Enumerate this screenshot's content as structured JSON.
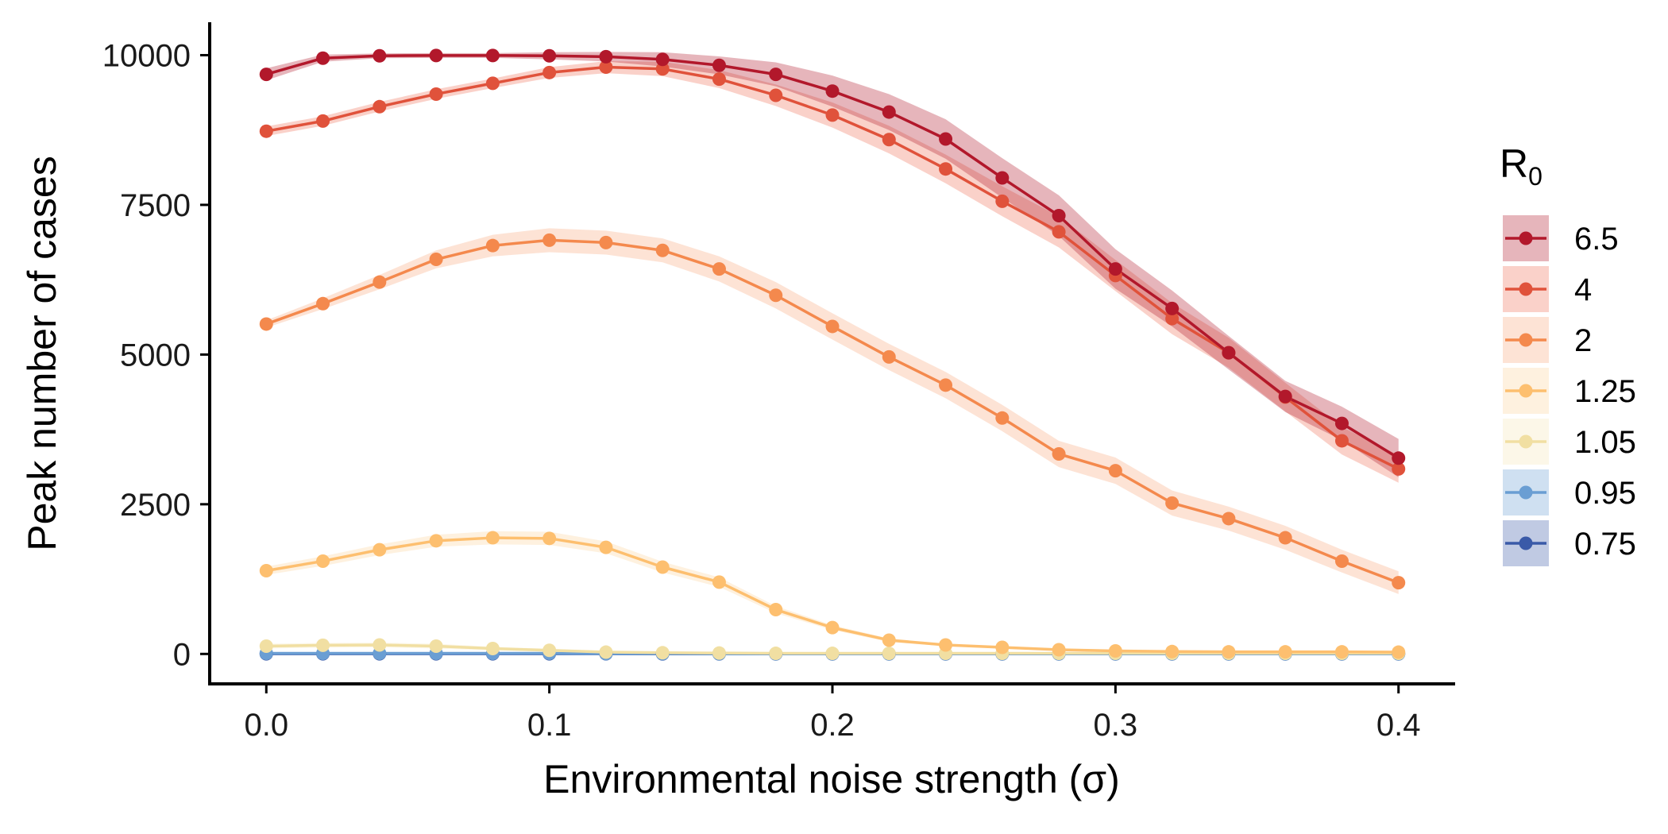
{
  "chart_data": {
    "type": "line",
    "xlabel": "Environmental noise strength (σ)",
    "ylabel": "Peak number of cases",
    "xlim": [
      -0.02,
      0.42
    ],
    "ylim": [
      -500,
      10550
    ],
    "x_ticks": [
      0.0,
      0.1,
      0.2,
      0.3,
      0.4
    ],
    "x_tick_labels": [
      "0.0",
      "0.1",
      "0.2",
      "0.3",
      "0.4"
    ],
    "y_ticks": [
      0,
      2500,
      5000,
      7500,
      10000
    ],
    "y_tick_labels": [
      "0",
      "2500",
      "5000",
      "7500",
      "10000"
    ],
    "grid": false,
    "legend": {
      "title_main": "R",
      "title_sub": "0",
      "placement": "right"
    },
    "x": [
      0.0,
      0.02,
      0.04,
      0.06,
      0.08,
      0.1,
      0.12,
      0.14,
      0.16,
      0.18,
      0.2,
      0.22,
      0.24,
      0.26,
      0.28,
      0.3,
      0.32,
      0.34,
      0.36,
      0.38,
      0.4
    ],
    "series": [
      {
        "name": "6.5",
        "color": "#b2182b",
        "band_color": "#b2182b",
        "values": [
          9680,
          9950,
          9990,
          9995,
          9995,
          9990,
          9975,
          9930,
          9830,
          9680,
          9400,
          9050,
          8600,
          7950,
          7320,
          6430,
          5770,
          5030,
          4300,
          3850,
          3270
        ],
        "band": [
          100,
          60,
          40,
          40,
          40,
          60,
          80,
          120,
          150,
          200,
          260,
          300,
          330,
          330,
          340,
          330,
          300,
          280,
          260,
          280,
          320
        ]
      },
      {
        "name": "4",
        "color": "#e0523b",
        "band_color": "#ef6f57",
        "values": [
          8730,
          8900,
          9140,
          9350,
          9530,
          9710,
          9800,
          9770,
          9600,
          9330,
          9000,
          8590,
          8100,
          7560,
          7050,
          6320,
          5600,
          5030,
          4290,
          3560,
          3090
        ],
        "band": [
          80,
          80,
          80,
          80,
          80,
          90,
          100,
          120,
          150,
          180,
          210,
          230,
          240,
          250,
          260,
          260,
          260,
          250,
          240,
          230,
          230
        ]
      },
      {
        "name": "2",
        "color": "#f4894d",
        "band_color": "#f9a77b",
        "values": [
          5510,
          5850,
          6210,
          6590,
          6820,
          6910,
          6870,
          6740,
          6430,
          5990,
          5470,
          4960,
          4490,
          3940,
          3340,
          3060,
          2520,
          2260,
          1940,
          1550,
          1190
        ],
        "band": [
          60,
          90,
          120,
          150,
          180,
          200,
          200,
          200,
          210,
          220,
          220,
          220,
          220,
          220,
          220,
          220,
          210,
          200,
          200,
          190,
          190
        ]
      },
      {
        "name": "1.25",
        "color": "#fdbf6f",
        "band_color": "#fcd39c",
        "values": [
          1390,
          1550,
          1740,
          1890,
          1940,
          1930,
          1780,
          1450,
          1200,
          740,
          440,
          230,
          150,
          110,
          70,
          50,
          40,
          35,
          35,
          35,
          30
        ],
        "band": [
          70,
          80,
          90,
          100,
          110,
          110,
          100,
          90,
          80,
          60,
          40,
          30,
          20,
          15,
          10,
          10,
          10,
          10,
          10,
          10,
          10
        ]
      },
      {
        "name": "1.05",
        "color": "#f1dfa2",
        "band_color": "#f5e7b9",
        "values": [
          130,
          145,
          150,
          130,
          90,
          60,
          30,
          20,
          15,
          10,
          10,
          10,
          10,
          10,
          10,
          10,
          10,
          10,
          10,
          10,
          10
        ],
        "band": [
          40,
          40,
          40,
          40,
          30,
          25,
          15,
          10,
          5,
          5,
          5,
          5,
          5,
          5,
          5,
          5,
          5,
          5,
          5,
          5,
          5
        ]
      },
      {
        "name": "0.95",
        "color": "#6a9ed3",
        "band_color": "#6a9ed3",
        "values": [
          10,
          10,
          10,
          10,
          10,
          10,
          5,
          5,
          3,
          2,
          2,
          2,
          2,
          2,
          2,
          2,
          2,
          2,
          2,
          2,
          2
        ],
        "band": [
          5,
          5,
          5,
          5,
          5,
          5,
          3,
          3,
          2,
          2,
          2,
          2,
          2,
          2,
          2,
          2,
          2,
          2,
          2,
          2,
          2
        ]
      },
      {
        "name": "0.75",
        "color": "#3a5aa8",
        "band_color": "#3a5aa8",
        "values": [
          2,
          2,
          2,
          2,
          2,
          2,
          2,
          1,
          1,
          1,
          1,
          1,
          1,
          1,
          1,
          1,
          1,
          1,
          1,
          1,
          1
        ],
        "band": [
          2,
          2,
          2,
          2,
          2,
          2,
          2,
          1,
          1,
          1,
          1,
          1,
          1,
          1,
          1,
          1,
          1,
          1,
          1,
          1,
          1
        ]
      }
    ]
  }
}
